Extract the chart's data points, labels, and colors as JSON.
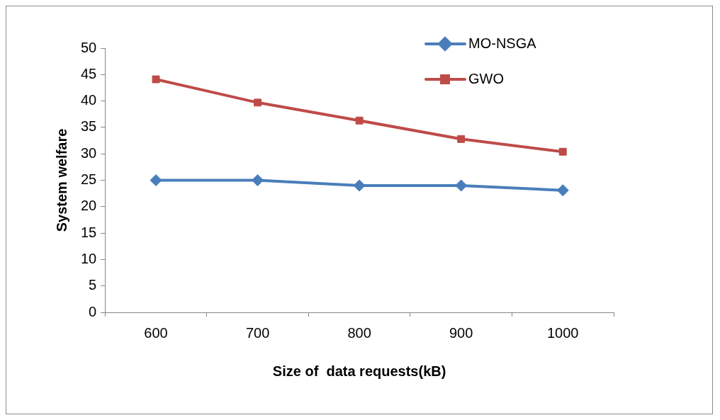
{
  "chart_data": {
    "type": "line",
    "xlabel": "Size of  data requests(kB)",
    "ylabel": "System welfare",
    "categories": [
      "600",
      "700",
      "800",
      "900",
      "1000"
    ],
    "series": [
      {
        "name": "MO-NSGA",
        "color": "#4a7ebb",
        "marker": "diamond",
        "values": [
          25,
          25,
          24,
          24,
          23.1
        ]
      },
      {
        "name": "GWO",
        "color": "#be4b48",
        "marker": "square",
        "values": [
          44.1,
          39.7,
          36.3,
          32.8,
          30.4
        ]
      }
    ],
    "ylim": [
      0,
      50
    ],
    "yticks": [
      0,
      5,
      10,
      15,
      20,
      25,
      30,
      35,
      40,
      45,
      50
    ],
    "grid": false,
    "legend": "top right",
    "line_style": "solid"
  }
}
